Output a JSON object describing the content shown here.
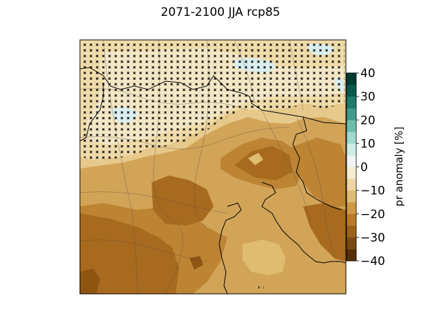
{
  "title": "2071-2100 JJA rcp85",
  "colorbar": {
    "label": "pr anomaly [%]",
    "ticks": [
      "40",
      "30",
      "20",
      "10",
      "0",
      "−10",
      "−20",
      "−30",
      "−40"
    ],
    "range": [
      -40,
      40
    ],
    "colors": [
      "#543005",
      "#7a4a0f",
      "#9c6316",
      "#b97c26",
      "#cf9a43",
      "#dfbc70",
      "#ecd6a2",
      "#f5ebd0",
      "#eef5f3",
      "#cdece7",
      "#9fd8cc",
      "#6cbdae",
      "#3f9b8e",
      "#1e7a6c",
      "#0a5a4c",
      "#003c30"
    ]
  },
  "palette": {
    "lightest": "#f3e7c6",
    "light": "#e6c98b",
    "mid": "#d2a458",
    "dark": "#bd8434",
    "darker": "#a76a1e",
    "darkest": "#8e5512",
    "pale_blue": "#dbeff0"
  }
}
